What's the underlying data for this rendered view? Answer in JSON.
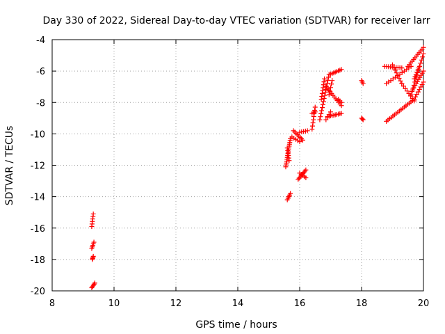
{
  "chart_data": {
    "type": "scatter",
    "title": "Day 330 of 2022, Sidereal Day-to-day VTEC variation (SDTVAR) for receiver larr",
    "xlabel": "GPS time / hours",
    "ylabel": "SDTVAR / TECUs",
    "xlim": [
      8,
      20
    ],
    "ylim": [
      -20,
      -4
    ],
    "xticks": [
      "8",
      "10",
      "12",
      "14",
      "16",
      "18",
      "20"
    ],
    "yticks": [
      "-4",
      "-6",
      "-8",
      "-10",
      "-12",
      "-14",
      "-16",
      "-18",
      "-20"
    ],
    "grid": true,
    "marker": "+",
    "color": "#ff0000",
    "segments": [
      {
        "x0": 9.33,
        "y0": -15.1,
        "x1": 9.28,
        "y1": -15.9,
        "n": 6
      },
      {
        "x0": 9.35,
        "y0": -16.9,
        "x1": 9.28,
        "y1": -17.3,
        "n": 5
      },
      {
        "x0": 9.33,
        "y0": -17.8,
        "x1": 9.3,
        "y1": -18.0,
        "n": 4
      },
      {
        "x0": 9.38,
        "y0": -19.5,
        "x1": 9.28,
        "y1": -19.8,
        "n": 5
      },
      {
        "x0": 15.7,
        "y0": -10.3,
        "x1": 15.55,
        "y1": -12.1,
        "n": 16
      },
      {
        "x0": 15.6,
        "y0": -10.9,
        "x1": 15.66,
        "y1": -11.7,
        "n": 6
      },
      {
        "x0": 15.6,
        "y0": -14.2,
        "x1": 15.7,
        "y1": -13.8,
        "n": 5
      },
      {
        "x0": 15.8,
        "y0": -9.8,
        "x1": 16.1,
        "y1": -10.4,
        "n": 8
      },
      {
        "x0": 15.75,
        "y0": -10.2,
        "x1": 16.0,
        "y1": -10.5,
        "n": 5
      },
      {
        "x0": 16.0,
        "y0": -9.9,
        "x1": 16.25,
        "y1": -9.8,
        "n": 5
      },
      {
        "x0": 15.95,
        "y0": -12.9,
        "x1": 16.2,
        "y1": -12.3,
        "n": 9
      },
      {
        "x0": 16.0,
        "y0": -12.5,
        "x1": 16.2,
        "y1": -12.8,
        "n": 5
      },
      {
        "x0": 16.4,
        "y0": -9.7,
        "x1": 16.5,
        "y1": -8.3,
        "n": 8
      },
      {
        "x0": 16.4,
        "y0": -8.7,
        "x1": 16.5,
        "y1": -8.6,
        "n": 3
      },
      {
        "x0": 16.65,
        "y0": -9.1,
        "x1": 16.95,
        "y1": -6.2,
        "n": 16
      },
      {
        "x0": 16.7,
        "y0": -7.8,
        "x1": 16.8,
        "y1": -6.5,
        "n": 8
      },
      {
        "x0": 16.85,
        "y0": -7.0,
        "x1": 17.35,
        "y1": -8.2,
        "n": 12
      },
      {
        "x0": 16.9,
        "y0": -8.9,
        "x1": 17.35,
        "y1": -8.7,
        "n": 10
      },
      {
        "x0": 17.0,
        "y0": -8.6,
        "x1": 16.85,
        "y1": -9.1,
        "n": 4
      },
      {
        "x0": 17.0,
        "y0": -6.2,
        "x1": 17.35,
        "y1": -5.9,
        "n": 8
      },
      {
        "x0": 17.05,
        "y0": -6.6,
        "x1": 16.95,
        "y1": -7.5,
        "n": 5
      },
      {
        "x0": 17.25,
        "y0": -7.8,
        "x1": 17.35,
        "y1": -8.0,
        "n": 3
      },
      {
        "x0": 18.0,
        "y0": -6.6,
        "x1": 18.05,
        "y1": -6.8,
        "n": 3
      },
      {
        "x0": 18.0,
        "y0": -9.0,
        "x1": 18.05,
        "y1": -9.1,
        "n": 3
      },
      {
        "x0": 18.75,
        "y0": -5.7,
        "x1": 19.3,
        "y1": -5.8,
        "n": 10
      },
      {
        "x0": 18.8,
        "y0": -6.8,
        "x1": 19.6,
        "y1": -5.7,
        "n": 12
      },
      {
        "x0": 18.8,
        "y0": -9.2,
        "x1": 19.7,
        "y1": -7.8,
        "n": 18
      },
      {
        "x0": 19.0,
        "y0": -5.6,
        "x1": 19.3,
        "y1": -6.8,
        "n": 8
      },
      {
        "x0": 19.3,
        "y0": -6.8,
        "x1": 19.7,
        "y1": -7.9,
        "n": 8
      },
      {
        "x0": 19.5,
        "y0": -5.7,
        "x1": 20.0,
        "y1": -4.5,
        "n": 12
      },
      {
        "x0": 19.6,
        "y0": -7.5,
        "x1": 20.0,
        "y1": -4.9,
        "n": 14
      },
      {
        "x0": 19.65,
        "y0": -7.2,
        "x1": 20.0,
        "y1": -6.0,
        "n": 10
      },
      {
        "x0": 19.7,
        "y0": -6.5,
        "x1": 19.85,
        "y1": -5.8,
        "n": 6
      },
      {
        "x0": 19.7,
        "y0": -7.8,
        "x1": 20.0,
        "y1": -6.7,
        "n": 8
      }
    ]
  }
}
